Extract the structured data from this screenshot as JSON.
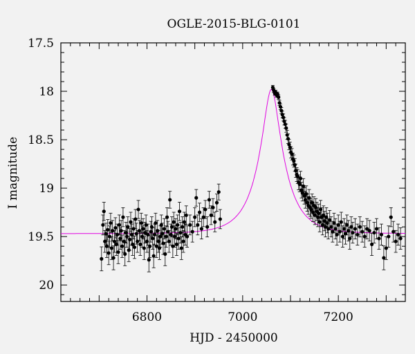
{
  "chart_data": {
    "type": "scatter",
    "title": "OGLE-2015-BLG-0101",
    "xlabel": "HJD - 2450000",
    "ylabel": "I magnitude",
    "xlim": [
      6620,
      7340
    ],
    "ylim": [
      20.17,
      17.5
    ],
    "y_inverted": true,
    "x_ticks": [
      6800,
      7000,
      7200
    ],
    "y_ticks": [
      17.5,
      18,
      18.5,
      19,
      19.5,
      20
    ],
    "grid": false,
    "model_color": "#e000e0",
    "point_color": "#000000",
    "model": {
      "name": "",
      "baseline_mag": 19.47,
      "peak_time": 7060,
      "peak_mag": 17.98,
      "shape": "point-lens",
      "u0": 0.27,
      "tE": 55
    },
    "series": [
      {
        "name": "",
        "points": [
          [
            6705,
            19.73
          ],
          [
            6708,
            19.38
          ],
          [
            6710,
            19.24
          ],
          [
            6712,
            19.55
          ],
          [
            6714,
            19.47
          ],
          [
            6716,
            19.6
          ],
          [
            6718,
            19.43
          ],
          [
            6720,
            19.67
          ],
          [
            6722,
            19.5
          ],
          [
            6724,
            19.36
          ],
          [
            6726,
            19.62
          ],
          [
            6728,
            19.44
          ],
          [
            6730,
            19.72
          ],
          [
            6732,
            19.55
          ],
          [
            6734,
            19.41
          ],
          [
            6736,
            19.58
          ],
          [
            6738,
            19.48
          ],
          [
            6740,
            19.66
          ],
          [
            6742,
            19.38
          ],
          [
            6744,
            19.52
          ],
          [
            6746,
            19.44
          ],
          [
            6748,
            19.6
          ],
          [
            6750,
            19.3
          ],
          [
            6752,
            19.55
          ],
          [
            6754,
            19.68
          ],
          [
            6756,
            19.46
          ],
          [
            6758,
            19.5
          ],
          [
            6760,
            19.4
          ],
          [
            6762,
            19.64
          ],
          [
            6764,
            19.53
          ],
          [
            6766,
            19.35
          ],
          [
            6768,
            19.48
          ],
          [
            6770,
            19.58
          ],
          [
            6772,
            19.42
          ],
          [
            6774,
            19.61
          ],
          [
            6776,
            19.32
          ],
          [
            6778,
            19.47
          ],
          [
            6780,
            19.55
          ],
          [
            6782,
            19.22
          ],
          [
            6784,
            19.44
          ],
          [
            6786,
            19.58
          ],
          [
            6788,
            19.36
          ],
          [
            6790,
            19.5
          ],
          [
            6792,
            19.42
          ],
          [
            6794,
            19.62
          ],
          [
            6796,
            19.46
          ],
          [
            6798,
            19.38
          ],
          [
            6800,
            19.55
          ],
          [
            6802,
            19.48
          ],
          [
            6804,
            19.74
          ],
          [
            6806,
            19.6
          ],
          [
            6808,
            19.45
          ],
          [
            6810,
            19.4
          ],
          [
            6812,
            19.52
          ],
          [
            6814,
            19.7
          ],
          [
            6816,
            19.48
          ],
          [
            6818,
            19.36
          ],
          [
            6820,
            19.6
          ],
          [
            6822,
            19.44
          ],
          [
            6824,
            19.55
          ],
          [
            6826,
            19.62
          ],
          [
            6828,
            19.5
          ],
          [
            6830,
            19.38
          ],
          [
            6832,
            19.47
          ],
          [
            6834,
            19.57
          ],
          [
            6836,
            19.42
          ],
          [
            6838,
            19.68
          ],
          [
            6840,
            19.5
          ],
          [
            6842,
            19.3
          ],
          [
            6844,
            19.45
          ],
          [
            6846,
            19.55
          ],
          [
            6848,
            19.12
          ],
          [
            6850,
            19.48
          ],
          [
            6852,
            19.4
          ],
          [
            6854,
            19.6
          ],
          [
            6856,
            19.35
          ],
          [
            6858,
            19.5
          ],
          [
            6860,
            19.42
          ],
          [
            6862,
            19.58
          ],
          [
            6864,
            19.38
          ],
          [
            6866,
            19.52
          ],
          [
            6868,
            19.24
          ],
          [
            6870,
            19.46
          ],
          [
            6872,
            19.62
          ],
          [
            6874,
            19.4
          ],
          [
            6876,
            19.55
          ],
          [
            6878,
            19.35
          ],
          [
            6880,
            19.48
          ],
          [
            6882,
            19.28
          ],
          [
            6884,
            19.5
          ],
          [
            6890,
            19.38
          ],
          [
            6895,
            19.45
          ],
          [
            6900,
            19.3
          ],
          [
            6903,
            19.1
          ],
          [
            6906,
            19.38
          ],
          [
            6910,
            19.25
          ],
          [
            6914,
            19.42
          ],
          [
            6918,
            19.3
          ],
          [
            6922,
            19.22
          ],
          [
            6926,
            19.4
          ],
          [
            6930,
            19.12
          ],
          [
            6934,
            19.28
          ],
          [
            6938,
            19.2
          ],
          [
            6942,
            19.35
          ],
          [
            6946,
            19.15
          ],
          [
            6950,
            19.04
          ],
          [
            6953,
            19.32
          ],
          [
            7063,
            17.96
          ],
          [
            7065,
            17.99
          ],
          [
            7067,
            18.02
          ],
          [
            7069,
            18.01
          ],
          [
            7071,
            18.04
          ],
          [
            7073,
            18.03
          ],
          [
            7075,
            18.06
          ],
          [
            7077,
            18.12
          ],
          [
            7079,
            18.16
          ],
          [
            7081,
            18.2
          ],
          [
            7083,
            18.24
          ],
          [
            7085,
            18.27
          ],
          [
            7087,
            18.31
          ],
          [
            7089,
            18.34
          ],
          [
            7091,
            18.38
          ],
          [
            7093,
            18.45
          ],
          [
            7095,
            18.49
          ],
          [
            7097,
            18.55
          ],
          [
            7099,
            18.58
          ],
          [
            7101,
            18.63
          ],
          [
            7103,
            18.65
          ],
          [
            7105,
            18.7
          ],
          [
            7107,
            18.72
          ],
          [
            7109,
            18.76
          ],
          [
            7111,
            18.82
          ],
          [
            7113,
            18.86
          ],
          [
            7115,
            18.88
          ],
          [
            7117,
            18.94
          ],
          [
            7119,
            18.96
          ],
          [
            7121,
            18.9
          ],
          [
            7123,
            19.02
          ],
          [
            7125,
            19.05
          ],
          [
            7127,
            18.98
          ],
          [
            7129,
            19.08
          ],
          [
            7131,
            19.12
          ],
          [
            7133,
            19.06
          ],
          [
            7135,
            19.15
          ],
          [
            7137,
            19.18
          ],
          [
            7139,
            19.1
          ],
          [
            7141,
            19.2
          ],
          [
            7143,
            19.22
          ],
          [
            7145,
            19.15
          ],
          [
            7147,
            19.25
          ],
          [
            7149,
            19.18
          ],
          [
            7151,
            19.28
          ],
          [
            7153,
            19.2
          ],
          [
            7155,
            19.24
          ],
          [
            7157,
            19.3
          ],
          [
            7159,
            19.26
          ],
          [
            7161,
            19.35
          ],
          [
            7163,
            19.22
          ],
          [
            7165,
            19.3
          ],
          [
            7167,
            19.38
          ],
          [
            7169,
            19.28
          ],
          [
            7171,
            19.34
          ],
          [
            7173,
            19.4
          ],
          [
            7175,
            19.3
          ],
          [
            7177,
            19.36
          ],
          [
            7179,
            19.42
          ],
          [
            7182,
            19.33
          ],
          [
            7185,
            19.4
          ],
          [
            7188,
            19.45
          ],
          [
            7191,
            19.36
          ],
          [
            7194,
            19.42
          ],
          [
            7197,
            19.48
          ],
          [
            7200,
            19.38
          ],
          [
            7203,
            19.45
          ],
          [
            7206,
            19.35
          ],
          [
            7209,
            19.5
          ],
          [
            7212,
            19.42
          ],
          [
            7215,
            19.47
          ],
          [
            7218,
            19.38
          ],
          [
            7221,
            19.44
          ],
          [
            7224,
            19.52
          ],
          [
            7227,
            19.4
          ],
          [
            7230,
            19.46
          ],
          [
            7235,
            19.42
          ],
          [
            7240,
            19.48
          ],
          [
            7245,
            19.4
          ],
          [
            7250,
            19.45
          ],
          [
            7255,
            19.5
          ],
          [
            7260,
            19.42
          ],
          [
            7265,
            19.44
          ],
          [
            7270,
            19.58
          ],
          [
            7275,
            19.46
          ],
          [
            7280,
            19.42
          ],
          [
            7285,
            19.52
          ],
          [
            7290,
            19.48
          ],
          [
            7295,
            19.72
          ],
          [
            7300,
            19.62
          ],
          [
            7305,
            19.5
          ],
          [
            7310,
            19.3
          ],
          [
            7315,
            19.45
          ],
          [
            7320,
            19.55
          ],
          [
            7325,
            19.48
          ],
          [
            7330,
            19.52
          ]
        ]
      }
    ]
  }
}
